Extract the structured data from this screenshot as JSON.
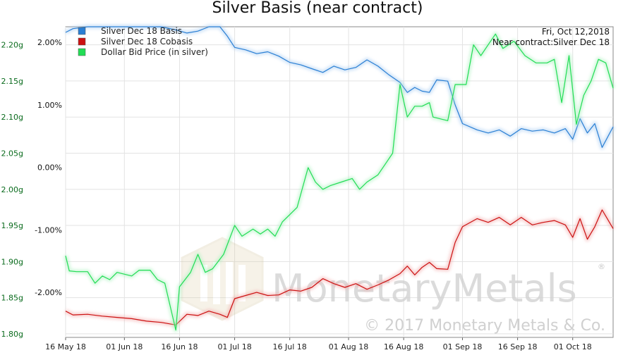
{
  "chart_data": {
    "type": "line",
    "title": "Silver Basis (near contract)",
    "info_lines": [
      "Fri, Oct 12,2018",
      "Near contract:Silver Dec 18"
    ],
    "watermark": {
      "brand": "MonetaryMetals",
      "copyright": "© 2017 Monetary Metals & Co.",
      "registered": "®"
    },
    "x_axis": {
      "ticks": [
        "16 May 18",
        "01 Jun 18",
        "16 Jun 18",
        "01 Jul 18",
        "16 Jul 18",
        "01 Aug 18",
        "16 Aug 18",
        "01 Sep 18",
        "16 Sep 18",
        "01 Oct 18"
      ],
      "range": [
        "2018-05-16",
        "2018-10-12"
      ]
    },
    "y_left": {
      "ticks": [
        "2.20g",
        "2.15g",
        "2.10g",
        "2.05g",
        "2.00g",
        "1.95g",
        "1.90g",
        "1.85g",
        "1.80g"
      ],
      "range": [
        1.795,
        2.225
      ],
      "color": "#0a6b1d"
    },
    "y_right": {
      "ticks": [
        "2.00%",
        "1.00%",
        "0.00%",
        "-1.00%",
        "-2.00%"
      ],
      "range_pct": [
        -2.72,
        2.25
      ],
      "color": "#b00000"
    },
    "grid": true,
    "legend_position": "top-left",
    "series": [
      {
        "name": "Silver Dec 18 Basis",
        "axis": "right",
        "color": "#2a7fd4",
        "points": [
          [
            "2018-05-16",
            2.16
          ],
          [
            "2018-05-18",
            2.22
          ],
          [
            "2018-05-22",
            2.25
          ],
          [
            "2018-05-26",
            2.25
          ],
          [
            "2018-05-30",
            2.25
          ],
          [
            "2018-06-03",
            2.25
          ],
          [
            "2018-06-07",
            2.25
          ],
          [
            "2018-06-11",
            2.25
          ],
          [
            "2018-06-15",
            2.2
          ],
          [
            "2018-06-18",
            2.15
          ],
          [
            "2018-06-21",
            2.18
          ],
          [
            "2018-06-24",
            2.25
          ],
          [
            "2018-06-27",
            2.25
          ],
          [
            "2018-06-29",
            2.1
          ],
          [
            "2018-07-01",
            1.92
          ],
          [
            "2018-07-04",
            1.88
          ],
          [
            "2018-07-07",
            1.82
          ],
          [
            "2018-07-10",
            1.85
          ],
          [
            "2018-07-13",
            1.78
          ],
          [
            "2018-07-16",
            1.68
          ],
          [
            "2018-07-19",
            1.64
          ],
          [
            "2018-07-22",
            1.58
          ],
          [
            "2018-07-25",
            1.52
          ],
          [
            "2018-07-28",
            1.62
          ],
          [
            "2018-07-31",
            1.56
          ],
          [
            "2018-08-03",
            1.6
          ],
          [
            "2018-08-06",
            1.72
          ],
          [
            "2018-08-09",
            1.62
          ],
          [
            "2018-08-12",
            1.48
          ],
          [
            "2018-08-15",
            1.36
          ],
          [
            "2018-08-17",
            1.2
          ],
          [
            "2018-08-19",
            1.28
          ],
          [
            "2018-08-21",
            1.22
          ],
          [
            "2018-08-23",
            1.2
          ],
          [
            "2018-08-25",
            1.4
          ],
          [
            "2018-08-28",
            1.38
          ],
          [
            "2018-08-30",
            1.0
          ],
          [
            "2018-09-01",
            0.7
          ],
          [
            "2018-09-05",
            0.6
          ],
          [
            "2018-09-08",
            0.55
          ],
          [
            "2018-09-11",
            0.6
          ],
          [
            "2018-09-14",
            0.5
          ],
          [
            "2018-09-17",
            0.62
          ],
          [
            "2018-09-20",
            0.58
          ],
          [
            "2018-09-23",
            0.6
          ],
          [
            "2018-09-26",
            0.55
          ],
          [
            "2018-09-29",
            0.62
          ],
          [
            "2018-10-01",
            0.45
          ],
          [
            "2018-10-03",
            0.78
          ],
          [
            "2018-10-05",
            0.55
          ],
          [
            "2018-10-07",
            0.7
          ],
          [
            "2018-10-09",
            0.32
          ],
          [
            "2018-10-12",
            0.65
          ]
        ]
      },
      {
        "name": "Silver Dec 18 Cobasis",
        "axis": "right",
        "color": "#cc1111",
        "points": [
          [
            "2018-05-16",
            -2.3
          ],
          [
            "2018-05-18",
            -2.36
          ],
          [
            "2018-05-22",
            -2.35
          ],
          [
            "2018-05-26",
            -2.38
          ],
          [
            "2018-05-30",
            -2.4
          ],
          [
            "2018-06-03",
            -2.42
          ],
          [
            "2018-06-07",
            -2.46
          ],
          [
            "2018-06-11",
            -2.48
          ],
          [
            "2018-06-15",
            -2.52
          ],
          [
            "2018-06-18",
            -2.35
          ],
          [
            "2018-06-21",
            -2.37
          ],
          [
            "2018-06-24",
            -2.3
          ],
          [
            "2018-06-27",
            -2.35
          ],
          [
            "2018-06-29",
            -2.4
          ],
          [
            "2018-07-01",
            -2.1
          ],
          [
            "2018-07-04",
            -2.05
          ],
          [
            "2018-07-07",
            -2.0
          ],
          [
            "2018-07-10",
            -2.05
          ],
          [
            "2018-07-13",
            -2.04
          ],
          [
            "2018-07-16",
            -1.96
          ],
          [
            "2018-07-19",
            -1.98
          ],
          [
            "2018-07-22",
            -1.92
          ],
          [
            "2018-07-25",
            -1.78
          ],
          [
            "2018-07-28",
            -1.86
          ],
          [
            "2018-07-31",
            -1.92
          ],
          [
            "2018-08-03",
            -1.86
          ],
          [
            "2018-08-06",
            -1.95
          ],
          [
            "2018-08-09",
            -1.88
          ],
          [
            "2018-08-12",
            -1.8
          ],
          [
            "2018-08-15",
            -1.7
          ],
          [
            "2018-08-17",
            -1.58
          ],
          [
            "2018-08-19",
            -1.72
          ],
          [
            "2018-08-21",
            -1.6
          ],
          [
            "2018-08-23",
            -1.52
          ],
          [
            "2018-08-25",
            -1.62
          ],
          [
            "2018-08-28",
            -1.63
          ],
          [
            "2018-08-30",
            -1.2
          ],
          [
            "2018-09-01",
            -0.95
          ],
          [
            "2018-09-05",
            -0.82
          ],
          [
            "2018-09-08",
            -0.88
          ],
          [
            "2018-09-11",
            -0.8
          ],
          [
            "2018-09-14",
            -0.92
          ],
          [
            "2018-09-17",
            -0.8
          ],
          [
            "2018-09-20",
            -0.92
          ],
          [
            "2018-09-23",
            -0.88
          ],
          [
            "2018-09-26",
            -0.85
          ],
          [
            "2018-09-29",
            -0.92
          ],
          [
            "2018-10-01",
            -1.12
          ],
          [
            "2018-10-03",
            -0.82
          ],
          [
            "2018-10-05",
            -1.15
          ],
          [
            "2018-10-07",
            -0.95
          ],
          [
            "2018-10-09",
            -0.68
          ],
          [
            "2018-10-12",
            -0.98
          ]
        ]
      },
      {
        "name": "Dollar Bid Price (in silver)",
        "axis": "left",
        "color": "#22dd55",
        "points": [
          [
            "2018-05-16",
            1.908
          ],
          [
            "2018-05-17",
            1.887
          ],
          [
            "2018-05-19",
            1.886
          ],
          [
            "2018-05-22",
            1.886
          ],
          [
            "2018-05-24",
            1.87
          ],
          [
            "2018-05-26",
            1.88
          ],
          [
            "2018-05-28",
            1.875
          ],
          [
            "2018-05-30",
            1.885
          ],
          [
            "2018-06-03",
            1.88
          ],
          [
            "2018-06-05",
            1.888
          ],
          [
            "2018-06-08",
            1.888
          ],
          [
            "2018-06-10",
            1.875
          ],
          [
            "2018-06-12",
            1.87
          ],
          [
            "2018-06-15",
            1.805
          ],
          [
            "2018-06-16",
            1.865
          ],
          [
            "2018-06-19",
            1.885
          ],
          [
            "2018-06-21",
            1.91
          ],
          [
            "2018-06-23",
            1.885
          ],
          [
            "2018-06-25",
            1.89
          ],
          [
            "2018-06-28",
            1.91
          ],
          [
            "2018-07-01",
            1.95
          ],
          [
            "2018-07-03",
            1.935
          ],
          [
            "2018-07-06",
            1.945
          ],
          [
            "2018-07-08",
            1.938
          ],
          [
            "2018-07-10",
            1.945
          ],
          [
            "2018-07-12",
            1.935
          ],
          [
            "2018-07-14",
            1.955
          ],
          [
            "2018-07-16",
            1.965
          ],
          [
            "2018-07-18",
            1.975
          ],
          [
            "2018-07-21",
            2.03
          ],
          [
            "2018-07-23",
            2.01
          ],
          [
            "2018-07-25",
            2.0
          ],
          [
            "2018-07-27",
            2.005
          ],
          [
            "2018-07-30",
            2.01
          ],
          [
            "2018-08-02",
            2.015
          ],
          [
            "2018-08-04",
            2.0
          ],
          [
            "2018-08-06",
            2.01
          ],
          [
            "2018-08-09",
            2.02
          ],
          [
            "2018-08-11",
            2.035
          ],
          [
            "2018-08-13",
            2.05
          ],
          [
            "2018-08-15",
            2.145
          ],
          [
            "2018-08-17",
            2.1
          ],
          [
            "2018-08-19",
            2.115
          ],
          [
            "2018-08-21",
            2.115
          ],
          [
            "2018-08-23",
            2.12
          ],
          [
            "2018-08-24",
            2.1
          ],
          [
            "2018-08-28",
            2.095
          ],
          [
            "2018-08-30",
            2.145
          ],
          [
            "2018-09-02",
            2.145
          ],
          [
            "2018-09-04",
            2.2
          ],
          [
            "2018-09-06",
            2.185
          ],
          [
            "2018-09-08",
            2.2
          ],
          [
            "2018-09-10",
            2.215
          ],
          [
            "2018-09-12",
            2.195
          ],
          [
            "2018-09-15",
            2.205
          ],
          [
            "2018-09-18",
            2.185
          ],
          [
            "2018-09-21",
            2.175
          ],
          [
            "2018-09-24",
            2.175
          ],
          [
            "2018-09-26",
            2.18
          ],
          [
            "2018-09-28",
            2.12
          ],
          [
            "2018-09-30",
            2.185
          ],
          [
            "2018-10-02",
            2.09
          ],
          [
            "2018-10-04",
            2.13
          ],
          [
            "2018-10-06",
            2.15
          ],
          [
            "2018-10-08",
            2.18
          ],
          [
            "2018-10-10",
            2.175
          ],
          [
            "2018-10-12",
            2.14
          ]
        ]
      }
    ]
  }
}
